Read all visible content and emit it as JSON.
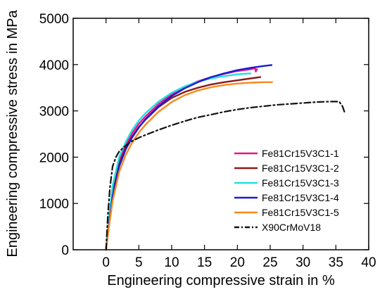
{
  "chart_data": {
    "type": "line",
    "title": "",
    "xlabel": "Engineering compressive strain in %",
    "ylabel": "Engineering compressive stress in MPa",
    "xlim": [
      -5,
      40
    ],
    "ylim": [
      0,
      5000
    ],
    "x_ticks": [
      0,
      5,
      10,
      15,
      20,
      25,
      30,
      35,
      40
    ],
    "y_ticks": [
      0,
      1000,
      2000,
      3000,
      4000,
      5000
    ],
    "grid": false,
    "legend_position": "lower-right",
    "series": [
      {
        "name": "Fe81Cr15V3C1-1",
        "color": "#e8168a",
        "style": "solid",
        "x": [
          0,
          0.5,
          1,
          2,
          3,
          4,
          5,
          6,
          8,
          10,
          12,
          14,
          16,
          18,
          20,
          22,
          22.7,
          22.8,
          23.0
        ],
        "y": [
          0,
          700,
          1300,
          1930,
          2260,
          2520,
          2720,
          2880,
          3150,
          3360,
          3520,
          3640,
          3730,
          3800,
          3860,
          3900,
          3920,
          3850,
          3900
        ]
      },
      {
        "name": "Fe81Cr15V3C1-2",
        "color": "#8b1a1a",
        "style": "solid",
        "x": [
          0,
          0.5,
          1,
          2,
          3,
          4,
          5,
          6,
          8,
          10,
          12,
          14,
          16,
          18,
          20,
          22,
          23.5
        ],
        "y": [
          0,
          650,
          1200,
          1850,
          2200,
          2450,
          2650,
          2810,
          3080,
          3280,
          3410,
          3500,
          3570,
          3620,
          3660,
          3700,
          3730
        ]
      },
      {
        "name": "Fe81Cr15V3C1-3",
        "color": "#22e0e0",
        "style": "solid",
        "x": [
          0,
          0.5,
          1,
          2,
          3,
          4,
          5,
          6,
          8,
          10,
          12,
          14,
          16,
          18,
          20,
          22
        ],
        "y": [
          0,
          750,
          1380,
          2000,
          2330,
          2590,
          2790,
          2950,
          3200,
          3390,
          3530,
          3630,
          3700,
          3750,
          3790,
          3810
        ]
      },
      {
        "name": "Fe81Cr15V3C1-4",
        "color": "#1a1ad4",
        "style": "solid",
        "x": [
          0,
          0.5,
          1,
          2,
          3,
          4,
          5,
          6,
          8,
          10,
          12,
          14,
          16,
          18,
          20,
          22,
          24,
          25.2
        ],
        "y": [
          0,
          600,
          1150,
          1800,
          2170,
          2430,
          2640,
          2820,
          3100,
          3320,
          3490,
          3620,
          3730,
          3810,
          3880,
          3930,
          3970,
          3990
        ]
      },
      {
        "name": "Fe81Cr15V3C1-5",
        "color": "#f58a1e",
        "style": "solid",
        "x": [
          0,
          0.5,
          1,
          2,
          3,
          4,
          5,
          6,
          8,
          10,
          12,
          14,
          16,
          18,
          20,
          22,
          24,
          25.3
        ],
        "y": [
          0,
          550,
          1050,
          1680,
          2050,
          2320,
          2530,
          2700,
          2980,
          3190,
          3340,
          3440,
          3510,
          3560,
          3590,
          3610,
          3620,
          3620
        ]
      },
      {
        "name": "X90CrMoV18",
        "color": "#111111",
        "style": "dashdot",
        "x": [
          0,
          0.3,
          0.6,
          1,
          1.5,
          2,
          3,
          4,
          5,
          6,
          8,
          10,
          12,
          14,
          16,
          18,
          20,
          22,
          24,
          26,
          28,
          30,
          32,
          34,
          35.5,
          36,
          36.3
        ],
        "y": [
          0,
          800,
          1350,
          1800,
          2000,
          2120,
          2250,
          2350,
          2420,
          2480,
          2590,
          2690,
          2780,
          2860,
          2920,
          2980,
          3030,
          3070,
          3100,
          3130,
          3150,
          3170,
          3190,
          3200,
          3200,
          3100,
          2980
        ]
      }
    ]
  }
}
